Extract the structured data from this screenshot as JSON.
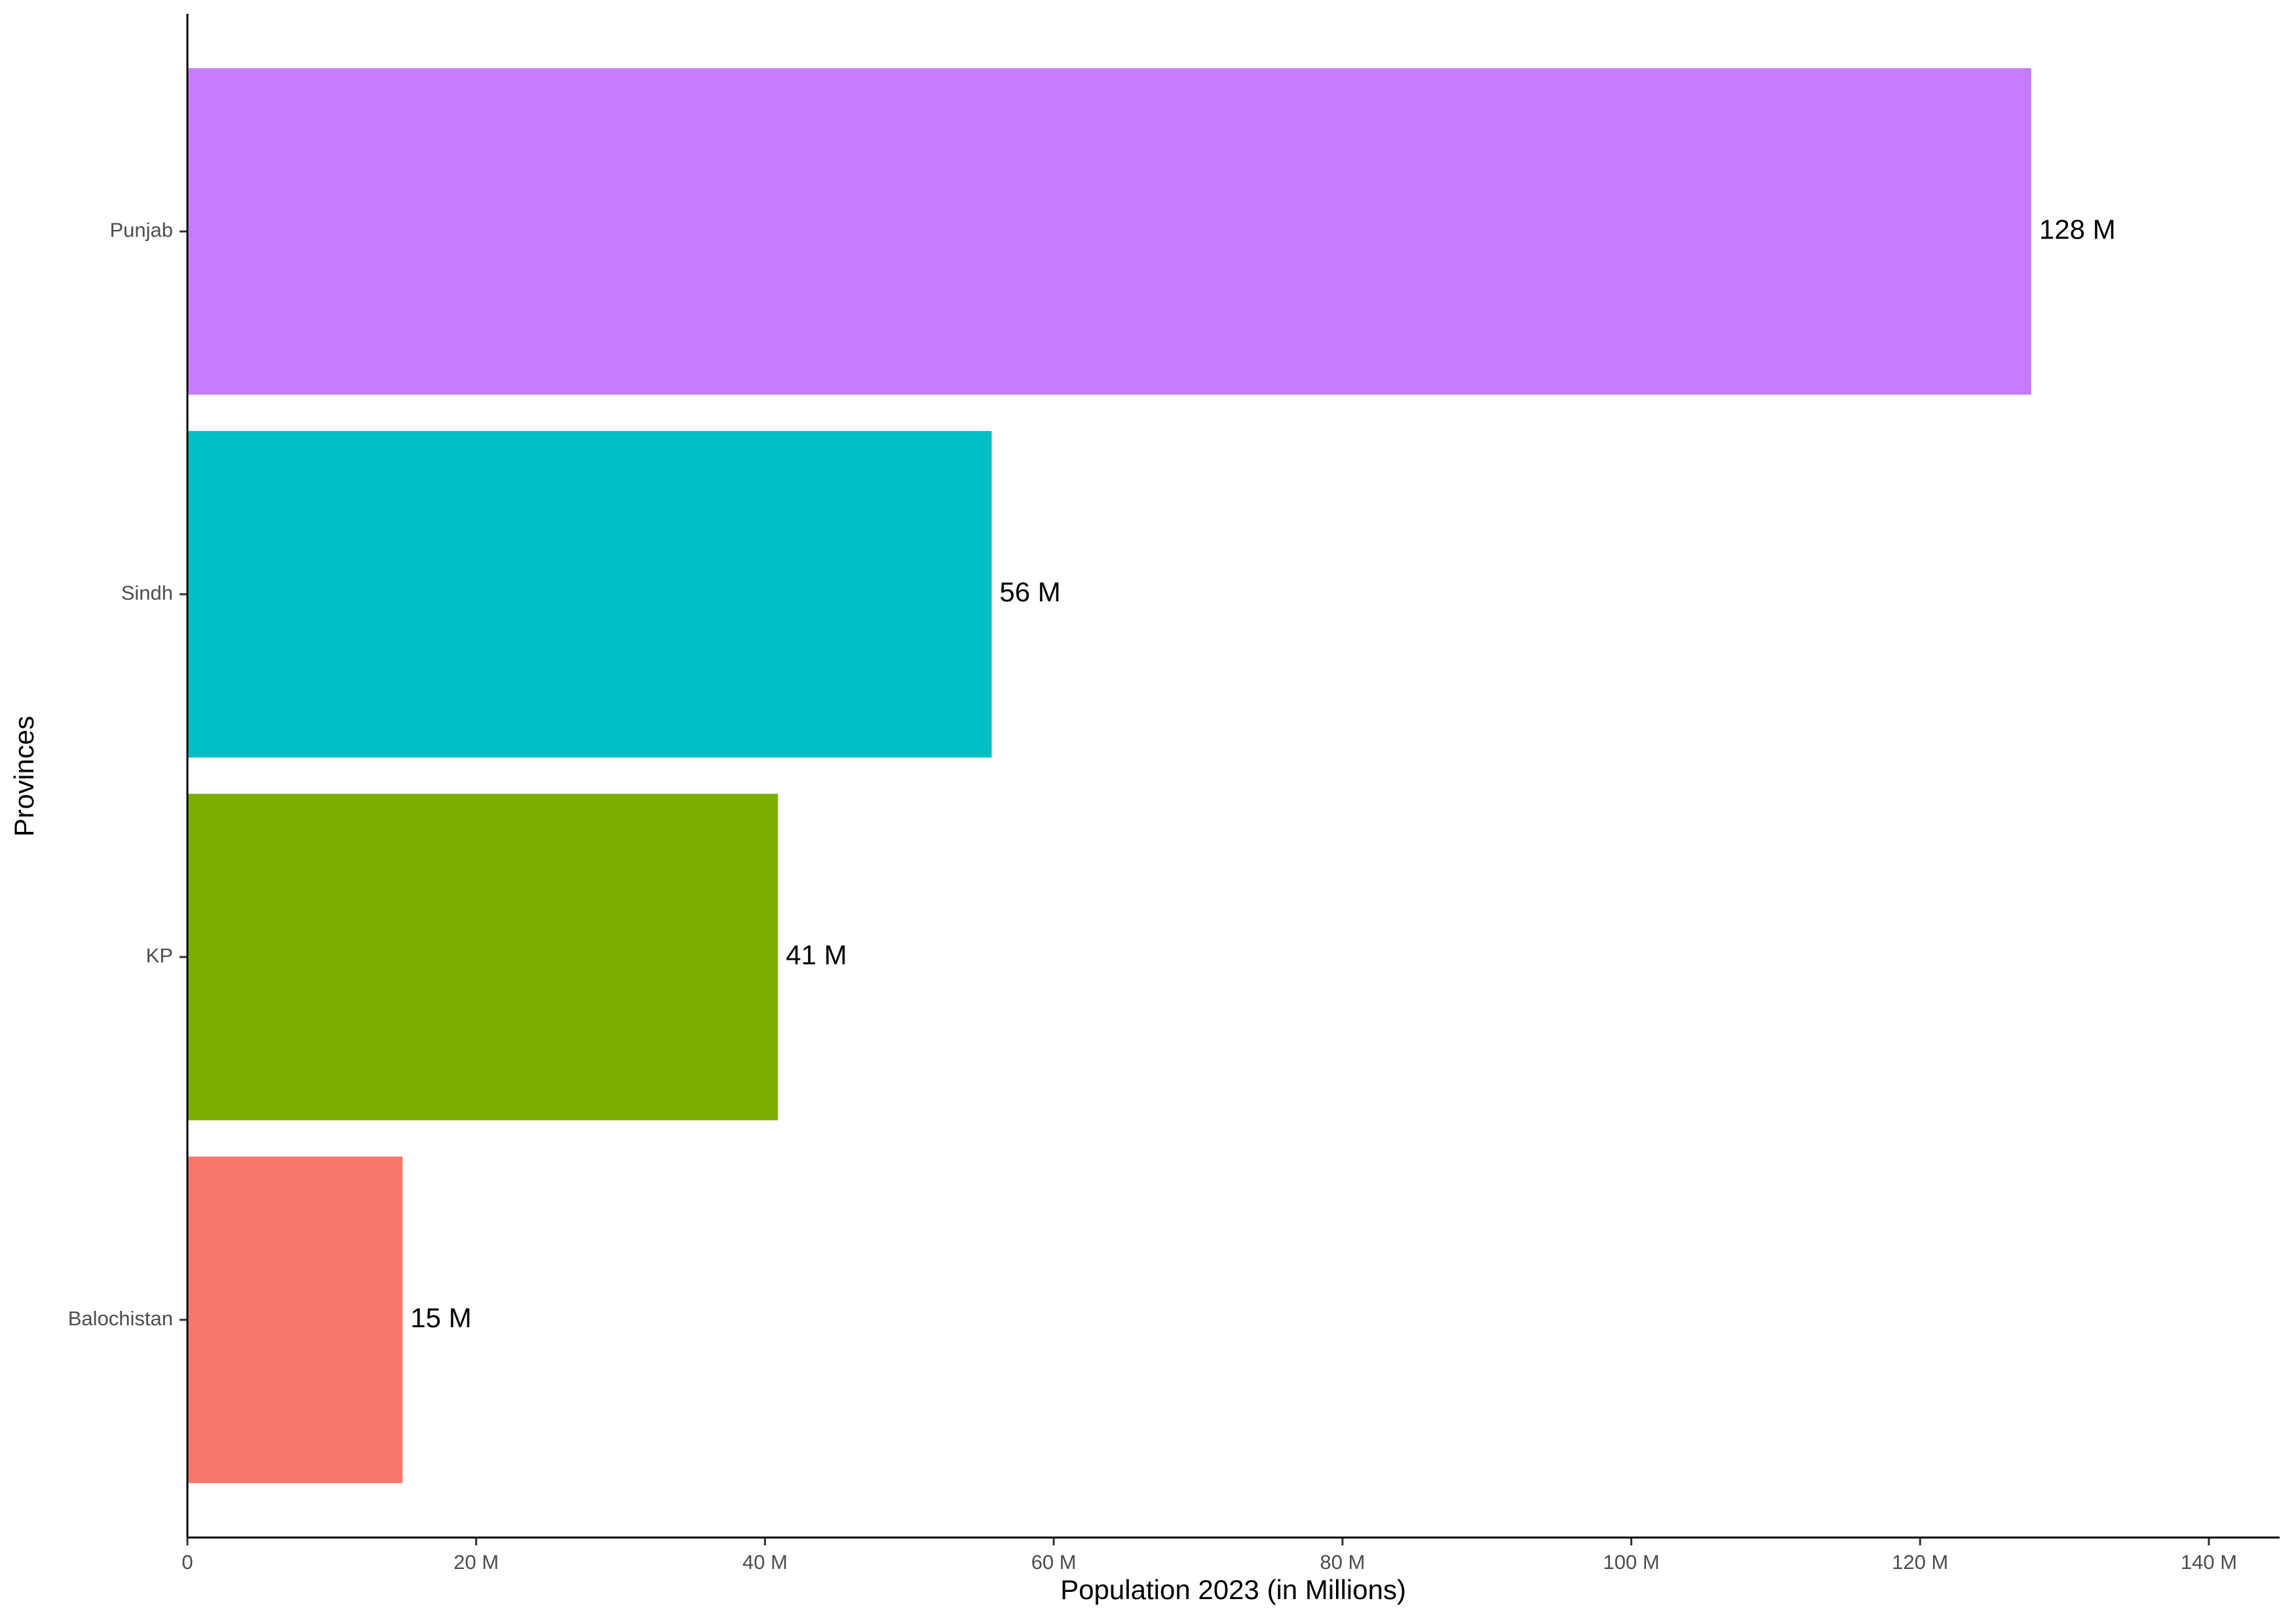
{
  "chart_data": {
    "type": "hbar",
    "x_label": "Population 2023 (in Millions)",
    "y_label": "Provinces",
    "categories": [
      "Punjab",
      "Sindh",
      "KP",
      "Balochistan"
    ],
    "values": [
      127.7,
      55.7,
      40.9,
      14.9
    ],
    "value_labels": [
      "128 M",
      "56 M",
      "41 M",
      "15 M"
    ],
    "colors": [
      "#c77cff",
      "#00bfc4",
      "#7cae00",
      "#f8766d"
    ],
    "xlim": [
      0,
      144.9
    ],
    "xticks": [
      0,
      {
        "value": 20,
        "label": "20 M"
      },
      {
        "value": 40,
        "label": "40 M"
      },
      {
        "value": 60,
        "label": "60 M"
      },
      {
        "value": 80,
        "label": "80 M"
      },
      {
        "value": 100,
        "label": "100 M"
      },
      {
        "value": 120,
        "label": "120 M"
      },
      {
        "value": 140,
        "label": "140 M"
      }
    ],
    "grid": false
  }
}
